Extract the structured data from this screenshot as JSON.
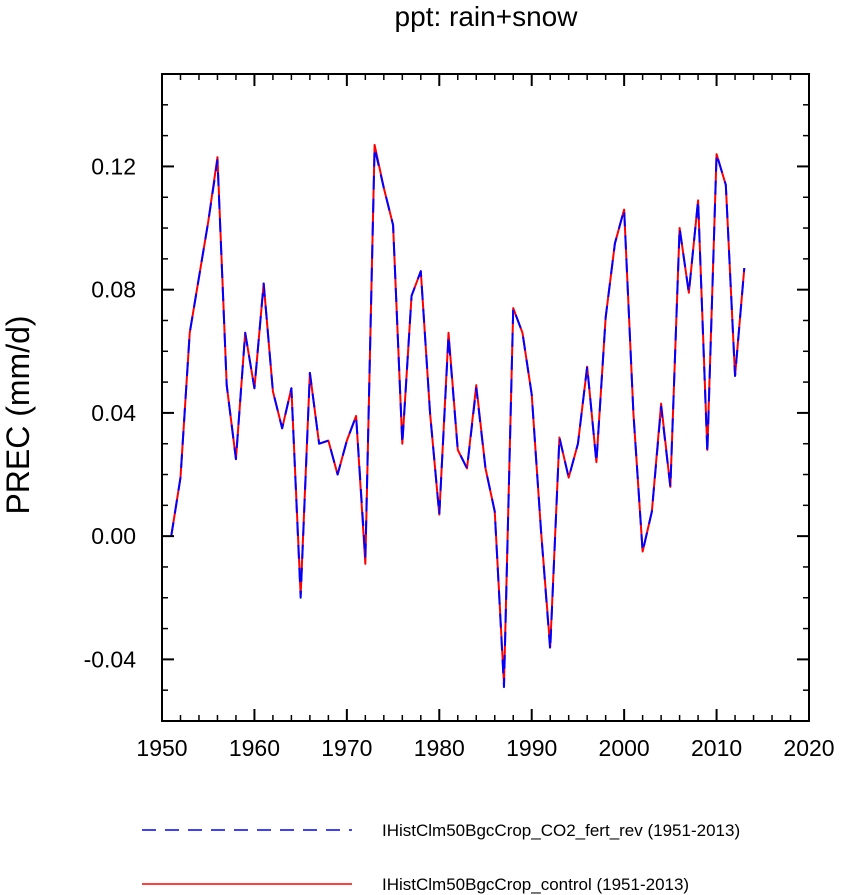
{
  "chart_data": {
    "type": "line",
    "title": "ppt: rain+snow",
    "xlabel": "",
    "ylabel": "PREC  (mm/d)",
    "xlim": [
      1950,
      2020
    ],
    "ylim": [
      -0.06,
      0.15
    ],
    "xticks": [
      1950,
      1960,
      1970,
      1980,
      1990,
      2000,
      2010,
      2020
    ],
    "xtick_labels": [
      "1950",
      "1960",
      "1970",
      "1980",
      "1990",
      "2000",
      "2010",
      "2020"
    ],
    "yticks": [
      -0.04,
      0.0,
      0.04,
      0.08,
      0.12
    ],
    "ytick_labels": [
      "-0.04",
      "0.00",
      "0.04",
      "0.08",
      "0.12"
    ],
    "grid": false,
    "legend_position": "bottom",
    "x": [
      1951,
      1952,
      1953,
      1954,
      1955,
      1956,
      1957,
      1958,
      1959,
      1960,
      1961,
      1962,
      1963,
      1964,
      1965,
      1966,
      1967,
      1968,
      1969,
      1970,
      1971,
      1972,
      1973,
      1974,
      1975,
      1976,
      1977,
      1978,
      1979,
      1980,
      1981,
      1982,
      1983,
      1984,
      1985,
      1986,
      1987,
      1988,
      1989,
      1990,
      1991,
      1992,
      1993,
      1994,
      1995,
      1996,
      1997,
      1998,
      1999,
      2000,
      2001,
      2002,
      2003,
      2004,
      2005,
      2006,
      2007,
      2008,
      2009,
      2010,
      2011,
      2012,
      2013
    ],
    "series": [
      {
        "name": "IHistClm50BgcCrop_CO2_fert_rev (1951-2013)",
        "color": "#0000ff",
        "dashed": true,
        "values": [
          0.0,
          0.019,
          0.066,
          0.084,
          0.102,
          0.122,
          0.049,
          0.025,
          0.066,
          0.048,
          0.082,
          0.047,
          0.035,
          0.048,
          -0.02,
          0.053,
          0.03,
          0.031,
          0.02,
          0.031,
          0.039,
          -0.007,
          0.126,
          0.113,
          0.101,
          0.03,
          0.078,
          0.086,
          0.04,
          0.007,
          0.065,
          0.028,
          0.022,
          0.048,
          0.022,
          0.008,
          -0.049,
          0.074,
          0.066,
          0.046,
          0.002,
          -0.037,
          0.032,
          0.019,
          0.03,
          0.055,
          0.024,
          0.071,
          0.095,
          0.106,
          0.04,
          -0.005,
          0.008,
          0.042,
          0.016,
          0.1,
          0.079,
          0.109,
          0.027,
          0.124,
          0.114,
          0.052,
          0.087
        ]
      },
      {
        "name": "IHistClm50BgcCrop_control (1951-2013)",
        "color": "#ff0000",
        "dashed": false,
        "values": [
          0.0,
          0.019,
          0.066,
          0.084,
          0.102,
          0.123,
          0.049,
          0.025,
          0.066,
          0.048,
          0.082,
          0.047,
          0.035,
          0.048,
          -0.019,
          0.053,
          0.03,
          0.031,
          0.02,
          0.031,
          0.039,
          -0.009,
          0.127,
          0.113,
          0.101,
          0.03,
          0.078,
          0.086,
          0.04,
          0.007,
          0.066,
          0.028,
          0.022,
          0.049,
          0.022,
          0.008,
          -0.048,
          0.074,
          0.066,
          0.046,
          0.002,
          -0.036,
          0.032,
          0.019,
          0.03,
          0.055,
          0.024,
          0.071,
          0.095,
          0.106,
          0.04,
          -0.005,
          0.008,
          0.043,
          0.016,
          0.1,
          0.079,
          0.109,
          0.028,
          0.124,
          0.114,
          0.052,
          0.087
        ]
      }
    ]
  }
}
